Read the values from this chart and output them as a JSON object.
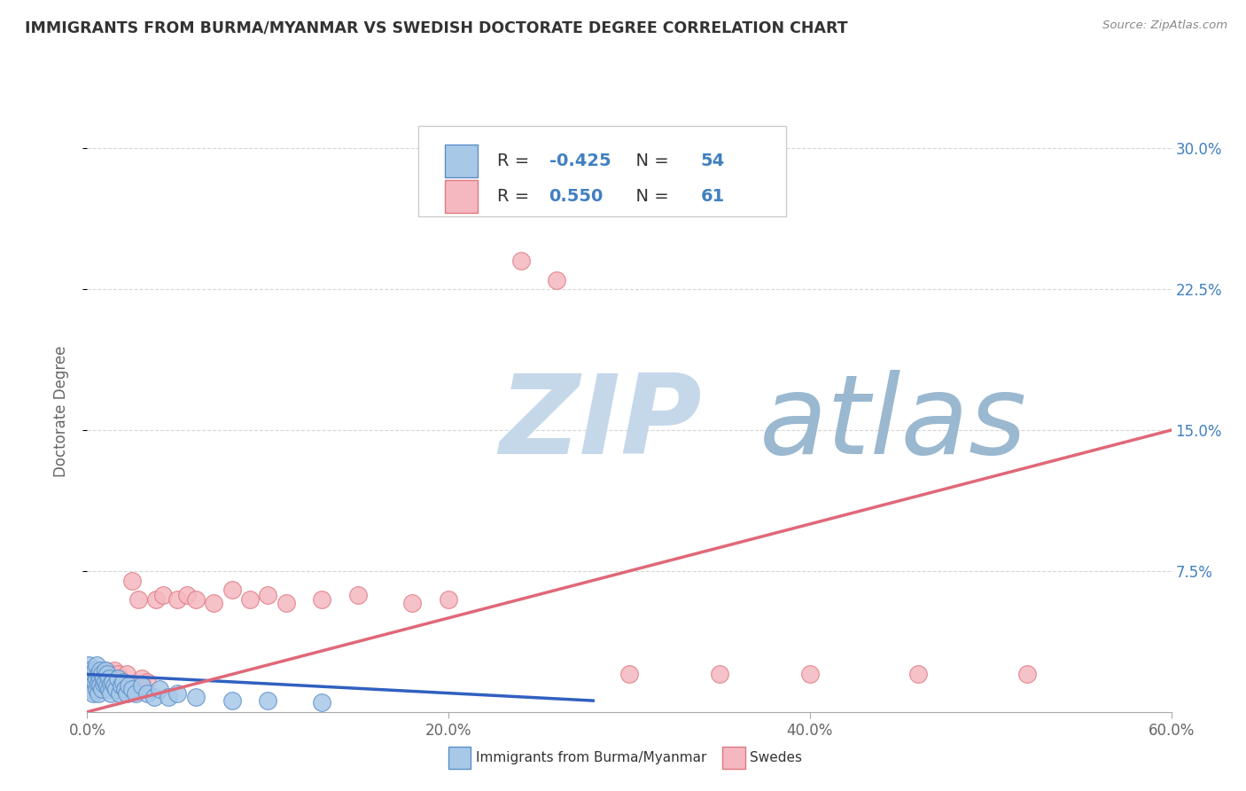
{
  "title": "IMMIGRANTS FROM BURMA/MYANMAR VS SWEDISH DOCTORATE DEGREE CORRELATION CHART",
  "source_text": "Source: ZipAtlas.com",
  "ylabel": "Doctorate Degree",
  "xlim": [
    0.0,
    0.6
  ],
  "ylim": [
    0.0,
    0.32
  ],
  "xtick_labels": [
    "0.0%",
    "20.0%",
    "40.0%",
    "60.0%"
  ],
  "xtick_values": [
    0.0,
    0.2,
    0.4,
    0.6
  ],
  "ytick_labels_right": [
    "7.5%",
    "15.0%",
    "22.5%",
    "30.0%"
  ],
  "ytick_values_right": [
    0.075,
    0.15,
    0.225,
    0.3
  ],
  "legend_labels": [
    "Immigrants from Burma/Myanmar",
    "Swedes"
  ],
  "R_blue": "-0.425",
  "N_blue": "54",
  "R_pink": "0.550",
  "N_pink": "61",
  "blue_scatter_color": "#a8c8e8",
  "blue_edge_color": "#5b8fc9",
  "pink_scatter_color": "#f5b8c0",
  "pink_edge_color": "#e07880",
  "blue_line_color": "#3060c0",
  "pink_line_color": "#e06878",
  "title_color": "#333333",
  "watermark_zip_color": "#c5d8ea",
  "watermark_atlas_color": "#9ab8d0",
  "background_color": "#ffffff",
  "grid_color": "#cccccc",
  "right_axis_color": "#4080c0",
  "blue_scatter_x": [
    0.0,
    0.001,
    0.001,
    0.002,
    0.002,
    0.002,
    0.003,
    0.003,
    0.003,
    0.004,
    0.004,
    0.005,
    0.005,
    0.005,
    0.006,
    0.006,
    0.006,
    0.007,
    0.007,
    0.007,
    0.008,
    0.008,
    0.009,
    0.009,
    0.01,
    0.01,
    0.011,
    0.011,
    0.012,
    0.012,
    0.013,
    0.013,
    0.014,
    0.015,
    0.016,
    0.017,
    0.018,
    0.019,
    0.02,
    0.021,
    0.022,
    0.023,
    0.025,
    0.027,
    0.03,
    0.033,
    0.037,
    0.04,
    0.045,
    0.05,
    0.06,
    0.08,
    0.1,
    0.13
  ],
  "blue_scatter_y": [
    0.02,
    0.018,
    0.025,
    0.015,
    0.022,
    0.012,
    0.02,
    0.018,
    0.01,
    0.016,
    0.022,
    0.018,
    0.012,
    0.025,
    0.015,
    0.02,
    0.01,
    0.018,
    0.014,
    0.022,
    0.012,
    0.02,
    0.015,
    0.018,
    0.016,
    0.022,
    0.014,
    0.02,
    0.012,
    0.018,
    0.015,
    0.01,
    0.016,
    0.014,
    0.012,
    0.018,
    0.01,
    0.014,
    0.016,
    0.012,
    0.01,
    0.014,
    0.012,
    0.01,
    0.014,
    0.01,
    0.008,
    0.012,
    0.008,
    0.01,
    0.008,
    0.006,
    0.006,
    0.005
  ],
  "pink_scatter_x": [
    0.0,
    0.001,
    0.001,
    0.001,
    0.002,
    0.002,
    0.002,
    0.003,
    0.003,
    0.003,
    0.004,
    0.004,
    0.004,
    0.005,
    0.005,
    0.005,
    0.006,
    0.006,
    0.007,
    0.007,
    0.008,
    0.008,
    0.009,
    0.009,
    0.01,
    0.01,
    0.011,
    0.012,
    0.013,
    0.014,
    0.015,
    0.016,
    0.017,
    0.018,
    0.02,
    0.022,
    0.025,
    0.028,
    0.03,
    0.033,
    0.038,
    0.042,
    0.05,
    0.055,
    0.06,
    0.07,
    0.08,
    0.09,
    0.1,
    0.11,
    0.13,
    0.15,
    0.18,
    0.2,
    0.24,
    0.26,
    0.3,
    0.35,
    0.4,
    0.46,
    0.52
  ],
  "pink_scatter_y": [
    0.02,
    0.015,
    0.022,
    0.018,
    0.02,
    0.016,
    0.022,
    0.018,
    0.015,
    0.02,
    0.018,
    0.012,
    0.022,
    0.016,
    0.02,
    0.014,
    0.018,
    0.016,
    0.02,
    0.014,
    0.018,
    0.016,
    0.02,
    0.015,
    0.018,
    0.022,
    0.016,
    0.02,
    0.015,
    0.018,
    0.022,
    0.016,
    0.02,
    0.018,
    0.016,
    0.02,
    0.07,
    0.06,
    0.018,
    0.016,
    0.06,
    0.062,
    0.06,
    0.062,
    0.06,
    0.058,
    0.065,
    0.06,
    0.062,
    0.058,
    0.06,
    0.062,
    0.058,
    0.06,
    0.24,
    0.23,
    0.02,
    0.02,
    0.02,
    0.02,
    0.02
  ],
  "blue_trend_x": [
    0.0,
    0.28
  ],
  "blue_trend_y": [
    0.02,
    0.006
  ],
  "pink_trend_x": [
    0.0,
    0.6
  ],
  "pink_trend_y": [
    0.0,
    0.15
  ]
}
